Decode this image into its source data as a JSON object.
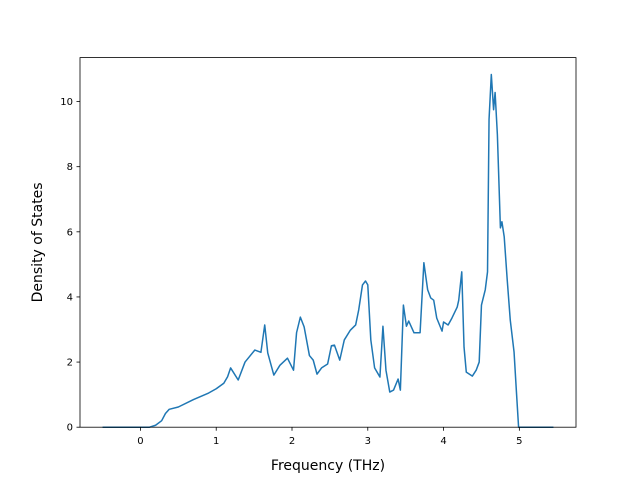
{
  "chart_data": {
    "type": "line",
    "xlabel": "Frequency (THz)",
    "ylabel": "Density of States",
    "xlim": [
      -0.7975,
      5.7475
    ],
    "ylim": [
      0,
      11.35
    ],
    "xticks": [
      0,
      1,
      2,
      3,
      4,
      5
    ],
    "yticks": [
      0,
      2,
      4,
      6,
      8,
      10
    ],
    "grid": false,
    "series": [
      {
        "name": null,
        "color": "#1f77b4",
        "x": [
          -0.5,
          0,
          0.12,
          0.2,
          0.28,
          0.33,
          0.38,
          0.5,
          0.7,
          0.9,
          1.0,
          1.1,
          1.15,
          1.19,
          1.29,
          1.38,
          1.51,
          1.59,
          1.64,
          1.68,
          1.76,
          1.84,
          1.94,
          2.02,
          2.06,
          2.11,
          2.16,
          2.23,
          2.28,
          2.33,
          2.39,
          2.47,
          2.52,
          2.56,
          2.63,
          2.69,
          2.77,
          2.84,
          2.88,
          2.93,
          2.97,
          3.0,
          3.04,
          3.09,
          3.16,
          3.2,
          3.24,
          3.29,
          3.34,
          3.4,
          3.43,
          3.47,
          3.51,
          3.54,
          3.61,
          3.69,
          3.74,
          3.79,
          3.83,
          3.87,
          3.91,
          3.98,
          4.0,
          4.06,
          4.11,
          4.18,
          4.2,
          4.24,
          4.27,
          4.3,
          4.38,
          4.43,
          4.47,
          4.5,
          4.55,
          4.58,
          4.6,
          4.63,
          4.66,
          4.68,
          4.71,
          4.75,
          4.77,
          4.8,
          4.84,
          4.88,
          4.93,
          4.96,
          4.99,
          5.2,
          5.45
        ],
        "values": [
          0,
          0,
          0,
          0.06,
          0.2,
          0.42,
          0.55,
          0.62,
          0.85,
          1.05,
          1.18,
          1.35,
          1.55,
          1.82,
          1.45,
          2.0,
          2.37,
          2.3,
          3.14,
          2.28,
          1.6,
          1.9,
          2.12,
          1.75,
          2.9,
          3.38,
          3.08,
          2.2,
          2.06,
          1.63,
          1.82,
          1.94,
          2.5,
          2.52,
          2.06,
          2.68,
          2.98,
          3.14,
          3.6,
          4.37,
          4.49,
          4.37,
          2.68,
          1.82,
          1.54,
          3.1,
          1.75,
          1.08,
          1.14,
          1.48,
          1.14,
          3.75,
          3.1,
          3.26,
          2.9,
          2.9,
          5.05,
          4.22,
          3.97,
          3.9,
          3.35,
          2.95,
          3.23,
          3.14,
          3.35,
          3.69,
          3.9,
          4.77,
          2.46,
          1.69,
          1.57,
          1.75,
          2.0,
          3.75,
          4.22,
          4.77,
          9.45,
          10.83,
          9.75,
          10.28,
          8.98,
          6.12,
          6.31,
          5.85,
          4.52,
          3.29,
          2.31,
          1.14,
          0,
          0,
          0
        ]
      }
    ]
  }
}
